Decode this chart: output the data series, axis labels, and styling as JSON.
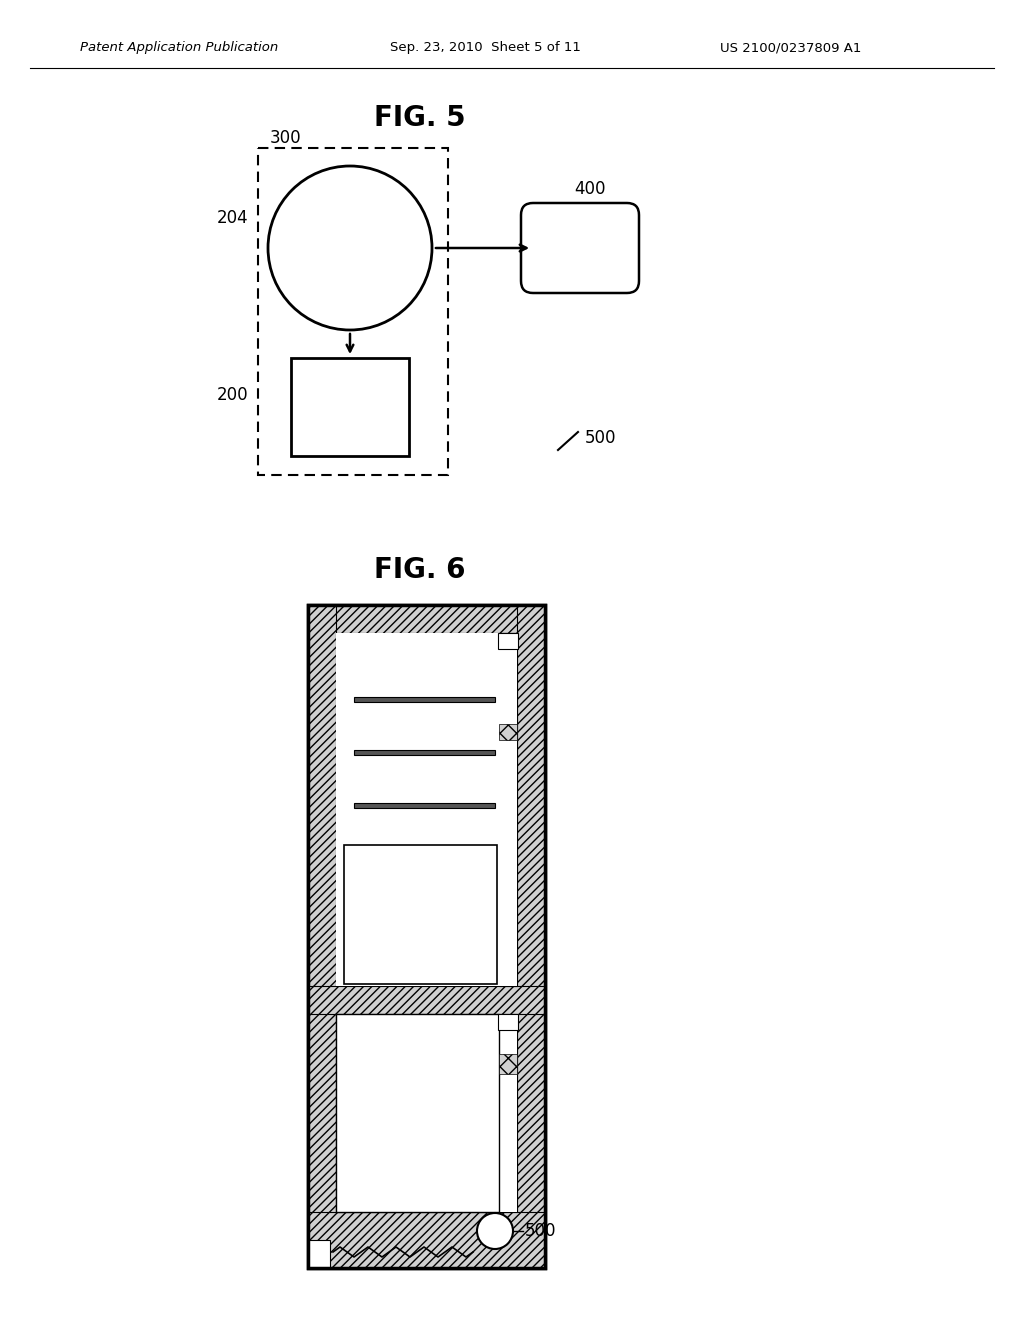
{
  "bg_color": "#ffffff",
  "header_left": "Patent Application Publication",
  "header_mid": "Sep. 23, 2010  Sheet 5 of 11",
  "header_right": "US 2100/0237809 A1",
  "fig5_title": "FIG. 5",
  "fig6_title": "FIG. 6",
  "label_300": "300",
  "label_204": "204",
  "label_200": "200",
  "label_400": "400",
  "label_500_fig5": "500",
  "label_500_fig6": "500",
  "line_color": "#000000"
}
